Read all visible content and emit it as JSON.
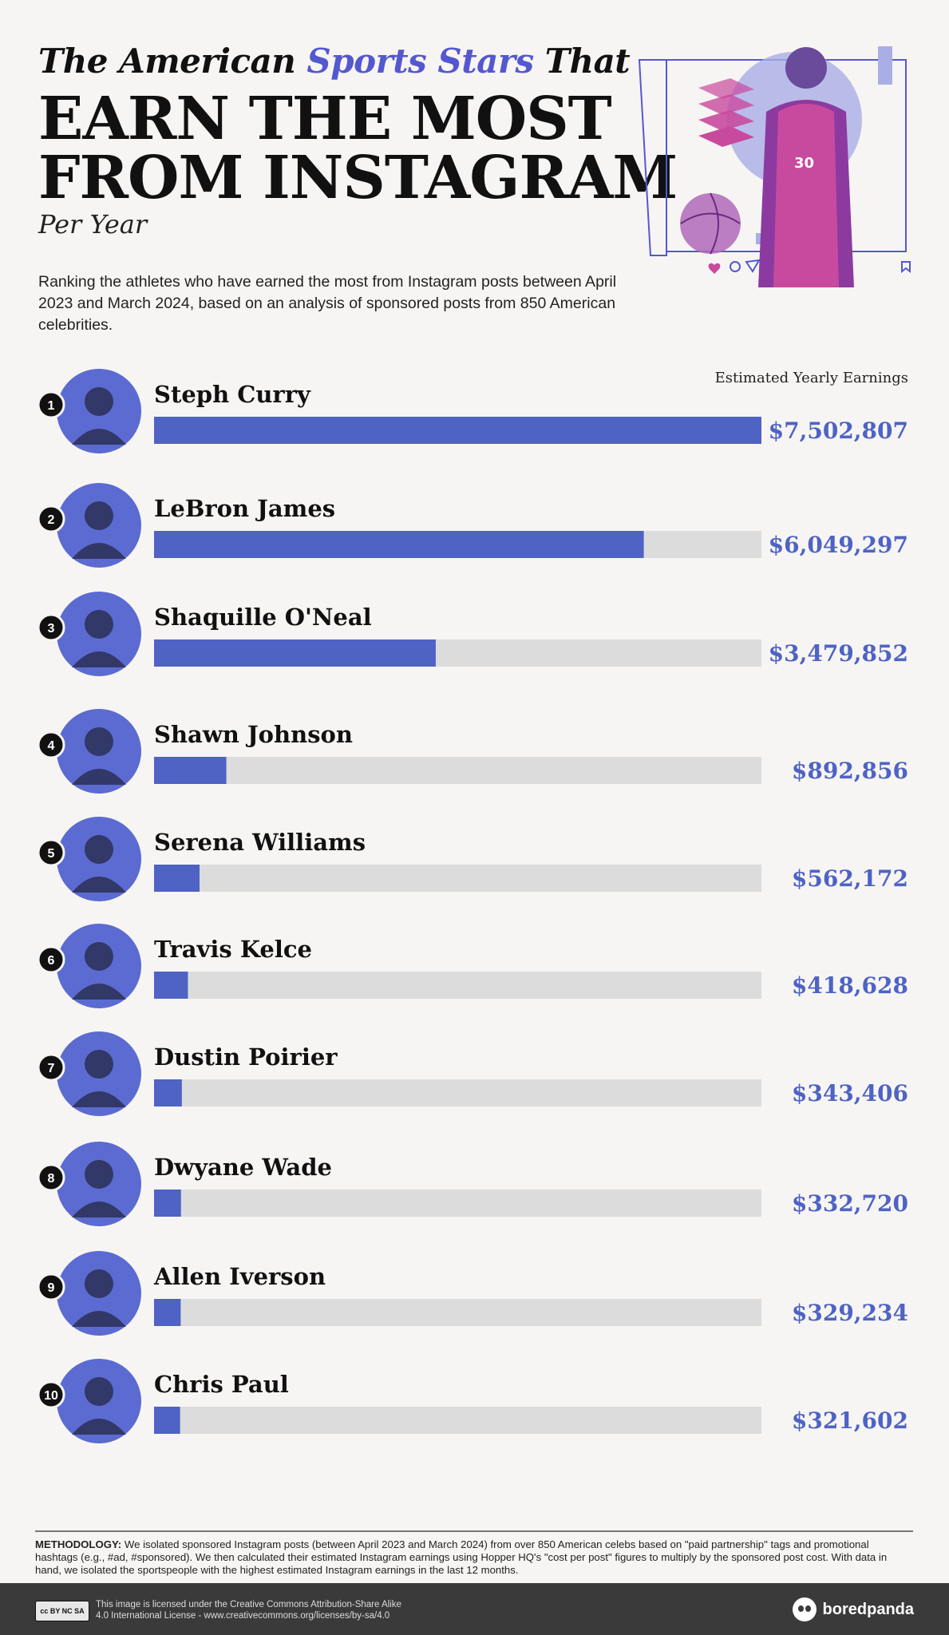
{
  "header": {
    "line1_prefix": "The American",
    "line1_accent": "Sports Stars",
    "line1_suffix": "That",
    "line2": "EARN THE MOST",
    "line3": "FROM INSTAGRAM",
    "subtitle": "Per Year",
    "description": "Ranking the athletes who have earned the most from Instagram posts between April 2023 and March 2024, based on an analysis of sponsored posts from 850 American celebrities.",
    "earnings_label": "Estimated Yearly Earnings"
  },
  "colors": {
    "accent": "#5458cf",
    "bar": "#4e63c4",
    "track": "#dcdcdc",
    "value_text": "#4e63c4",
    "rank_circle": "#111111",
    "hero_pink": "#c84a9e"
  },
  "chart_data": {
    "type": "bar",
    "orientation": "horizontal",
    "categories": [
      "Steph Curry",
      "LeBron James",
      "Shaquille O'Neal",
      "Shawn Johnson",
      "Serena Williams",
      "Travis Kelce",
      "Dustin Poirier",
      "Dwyane Wade",
      "Allen Iverson",
      "Chris Paul"
    ],
    "ranks": [
      "1",
      "2",
      "3",
      "4",
      "5",
      "6",
      "7",
      "8",
      "9",
      "10"
    ],
    "values": [
      7502807,
      6049297,
      3479852,
      892856,
      562172,
      418628,
      343406,
      332720,
      329234,
      321602
    ],
    "value_labels": [
      "$7,502,807",
      "$6,049,297",
      "$3,479,852",
      "$892,856",
      "$562,172",
      "$418,628",
      "$343,406",
      "$332,720",
      "$329,234",
      "$321,602"
    ],
    "xlim": [
      0,
      7502807
    ],
    "ylabel": "",
    "xlabel": "Estimated Yearly Earnings"
  },
  "hero_icons": [
    "heart-icon",
    "comment-icon",
    "send-icon",
    "bookmark-icon"
  ],
  "methodology": {
    "label": "METHODOLOGY:",
    "text": "We isolated sponsored Instagram posts (between April 2023 and March 2024) from over 850 American celebs based on \"paid partnership\" tags and promotional hashtags (e.g., #ad, #sponsored). We then calculated their estimated Instagram earnings using Hopper HQ's \"cost per post\" figures to multiply by the sponsored post cost. With data in hand, we isolated the sportspeople with the highest estimated Instagram earnings in the last 12 months."
  },
  "footer": {
    "cc_badge": "cc BY NC SA",
    "license_line1": "This image is licensed under the Creative Commons Attribution-Share Alike",
    "license_line2": "4.0 International License - www.creativecommons.org/licenses/by-sa/4.0",
    "brand": "boredpanda"
  }
}
